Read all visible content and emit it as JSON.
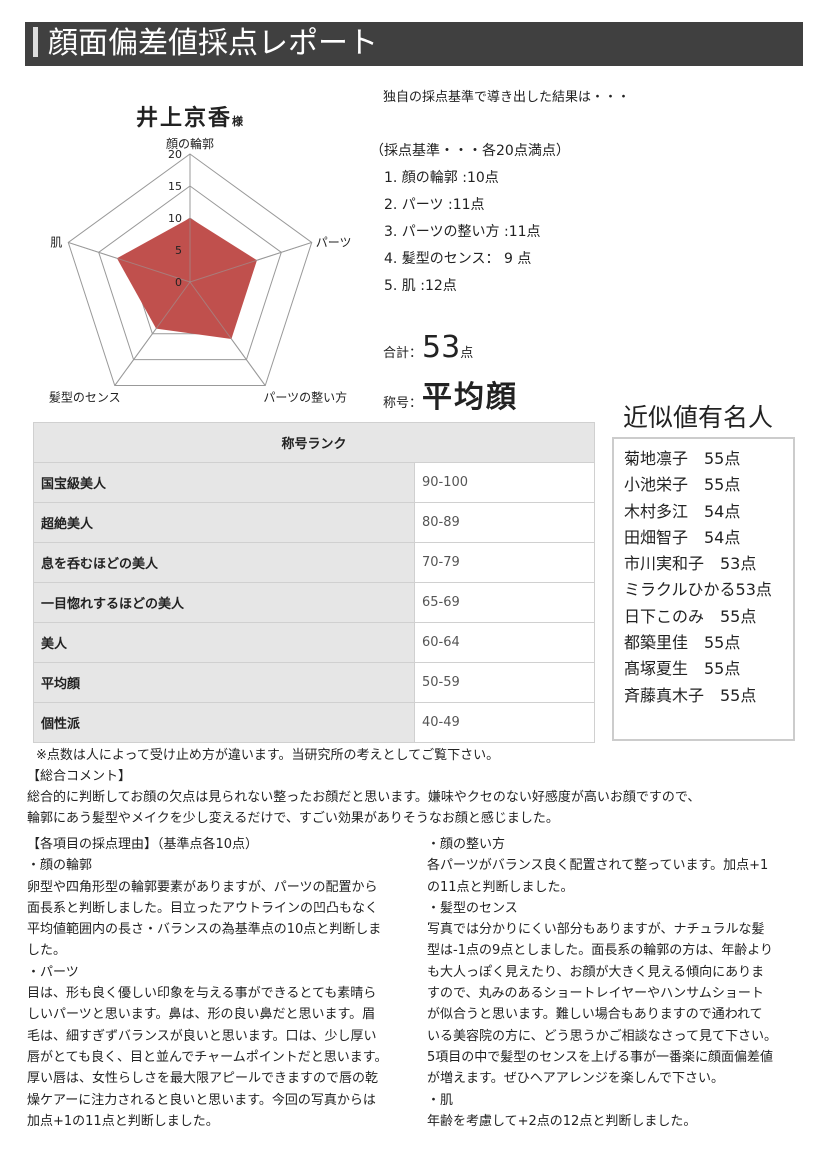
{
  "title": "顔面偏差値採点レポート",
  "person": {
    "name": "井上京香",
    "honorific": "様"
  },
  "intro": "独自の採点基準で導き出した結果は・・・",
  "criteria": {
    "header": "（採点基準・・・各20点満点）",
    "items": [
      "1.  顔の輪郭 :10点",
      "2.  パーツ :11点",
      "3.  パーツの整い方 :11点",
      "4.  髪型のセンス： 9 点",
      "5.  肌 :12点"
    ]
  },
  "total": {
    "label": "合計：",
    "value": "53",
    "unit": "点"
  },
  "rank": {
    "label": "称号：",
    "value": "平均顔"
  },
  "chart_data": {
    "type": "radar",
    "axes": [
      "顔の輪郭",
      "パーツ",
      "パーツの整い方",
      "髪型のセンス",
      "肌"
    ],
    "values": [
      10,
      11,
      11,
      9,
      12
    ],
    "range": [
      0,
      20
    ],
    "ticks": [
      "0",
      "5",
      "10",
      "15",
      "20"
    ],
    "color": "#c0504d"
  },
  "rank_table": {
    "header": "称号ランク",
    "rows": [
      {
        "title": "国宝級美人",
        "range": "90-100"
      },
      {
        "title": "超絶美人",
        "range": "80-89"
      },
      {
        "title": "息を呑むほどの美人",
        "range": "70-79"
      },
      {
        "title": "一目惚れするほどの美人",
        "range": "65-69"
      },
      {
        "title": "美人",
        "range": "60-64"
      },
      {
        "title": "平均顔",
        "range": "50-59"
      },
      {
        "title": "個性派",
        "range": "40-49"
      }
    ]
  },
  "famous": {
    "title": "近似値有名人",
    "items": [
      "菊地凛子　55点",
      "小池栄子　55点",
      "木村多江　54点",
      "田畑智子　54点",
      "市川実和子　53点",
      "ミラクルひかる53点",
      "日下このみ　55点",
      "都築里佳　55点",
      "髙塚夏生　55点",
      "斉藤真木子　55点"
    ]
  },
  "note": "※点数は人によって受け止め方が違います。当研究所の考えとしてご覧下さい。",
  "comment": {
    "heading": "【総合コメント】",
    "lines": [
      "総合的に判断してお顔の欠点は見られない整ったお顔だと思います。嫌味やクセのない好感度が高いお顔ですので、",
      "輪郭にあう髪型やメイクを少し変えるだけで、すごい効果がありそうなお顔と感じました。"
    ]
  },
  "reasons": {
    "heading": "【各項目の採点理由】（基準点各10点）",
    "left": [
      "・顔の輪郭",
      "卵型や四角形型の輪郭要素がありますが、パーツの配置から",
      "面長系と判断しました。目立ったアウトラインの凹凸もなく",
      "平均値範囲内の長さ・バランスの為基準点の10点と判断しま",
      "した。",
      "・パーツ",
      "目は、形も良く優しい印象を与える事ができるとても素晴ら",
      "しいパーツと思います。鼻は、形の良い鼻だと思います。眉",
      "毛は、細すぎずバランスが良いと思います。口は、少し厚い",
      "唇がとても良く、目と並んでチャームポイントだと思います。",
      "厚い唇は、女性らしさを最大限アピールできますので唇の乾",
      "燥ケアーに注力されると良いと思います。今回の写真からは",
      "加点+1の11点と判断しました。"
    ],
    "right": [
      "・顔の整い方",
      "各パーツがバランス良く配置されて整っています。加点+1",
      "の11点と判断しました。",
      "・髪型のセンス",
      "写真では分かりにくい部分もありますが、ナチュラルな髪",
      "型は-1点の9点としました。面長系の輪郭の方は、年齢より",
      "も大人っぽく見えたり、お顔が大きく見える傾向にありま",
      "すので、丸みのあるショートレイヤーやハンサムショート",
      "が似合うと思います。難しい場合もありますので通われて",
      "いる美容院の方に、どう思うかご相談なさって見て下さい。",
      "5項目の中で髪型のセンスを上げる事が一番楽に顔面偏差値",
      "が増えます。ぜひヘアアレンジを楽しんで下さい。",
      "・肌",
      "年齢を考慮して+2点の12点と判断しました。"
    ]
  }
}
